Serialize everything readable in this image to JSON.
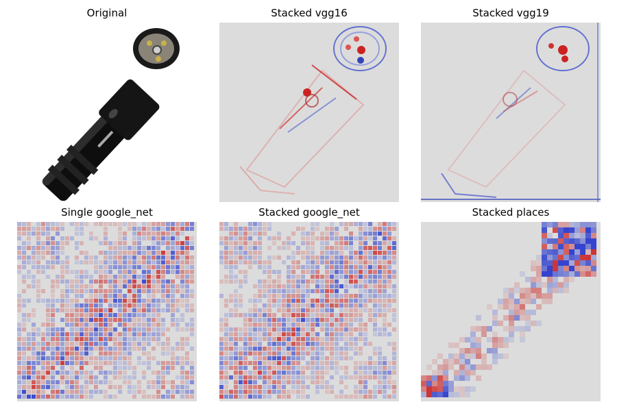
{
  "figure": {
    "panels": [
      {
        "title": "Original",
        "kind": "photo"
      },
      {
        "title": "Stacked vgg16",
        "kind": "heatmap-smooth"
      },
      {
        "title": "Stacked vgg19",
        "kind": "heatmap-smooth"
      },
      {
        "title": "Single google_net",
        "kind": "heatmap-checker"
      },
      {
        "title": "Stacked google_net",
        "kind": "heatmap-checker"
      },
      {
        "title": "Stacked places",
        "kind": "heatmap-blocky"
      }
    ]
  },
  "colors": {
    "background": "#dcdcdc",
    "positive": "#cc2222",
    "negative": "#2233cc",
    "flashlight_body": "#111111"
  }
}
